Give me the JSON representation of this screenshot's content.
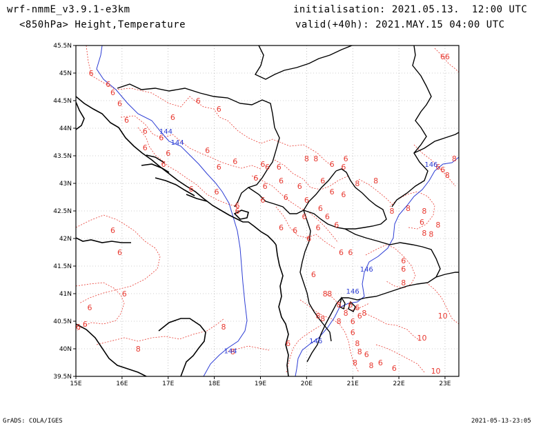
{
  "header": {
    "model": "wrf-nmmE_v3.9.1-e3km",
    "fields": "<850hPa> Height,Temperature",
    "init": "initialisation: 2021.05.13.  12:00 UTC",
    "valid": "valid(+40h): 2021.MAY.15 04:00 UTC"
  },
  "footer": {
    "left": "GrADS: COLA/IGES",
    "right": "2021-05-13-23:05"
  },
  "colors": {
    "temperature_contour": "#e8382f",
    "height_contour": "#2a3bd4",
    "coastline": "#000000",
    "border": "#000000",
    "grid": "#9a9a9a"
  },
  "map": {
    "lon_range": [
      15,
      23.3
    ],
    "lat_range": [
      39.5,
      45.5
    ],
    "lon_ticks": [
      {
        "value": 15,
        "label": "15E"
      },
      {
        "value": 16,
        "label": "16E"
      },
      {
        "value": 17,
        "label": "17E"
      },
      {
        "value": 18,
        "label": "18E"
      },
      {
        "value": 19,
        "label": "19E"
      },
      {
        "value": 20,
        "label": "20E"
      },
      {
        "value": 21,
        "label": "21E"
      },
      {
        "value": 22,
        "label": "22E"
      },
      {
        "value": 23,
        "label": "23E"
      }
    ],
    "lat_ticks": [
      {
        "value": 39.5,
        "label": "39.5N"
      },
      {
        "value": 40,
        "label": "40N"
      },
      {
        "value": 40.5,
        "label": "40.5N"
      },
      {
        "value": 41,
        "label": "41N"
      },
      {
        "value": 41.5,
        "label": "41.5N"
      },
      {
        "value": 42,
        "label": "42N"
      },
      {
        "value": 42.5,
        "label": "42.5N"
      },
      {
        "value": 43,
        "label": "43N"
      },
      {
        "value": 43.5,
        "label": "43.5N"
      },
      {
        "value": 44,
        "label": "44N"
      },
      {
        "value": 44.5,
        "label": "44.5N"
      },
      {
        "value": 45,
        "label": "45N"
      },
      {
        "value": 45.5,
        "label": "45.5N"
      }
    ],
    "grid": true,
    "temperature_labels": [
      {
        "text": "6",
        "lon": 15.33,
        "lat": 45.0
      },
      {
        "text": "6",
        "lon": 15.7,
        "lat": 44.8
      },
      {
        "text": "6",
        "lon": 15.8,
        "lat": 44.65
      },
      {
        "text": "6",
        "lon": 15.95,
        "lat": 44.45
      },
      {
        "text": "6",
        "lon": 17.65,
        "lat": 44.5
      },
      {
        "text": "6",
        "lon": 18.1,
        "lat": 44.35
      },
      {
        "text": "6",
        "lon": 16.1,
        "lat": 44.15
      },
      {
        "text": "6",
        "lon": 16.5,
        "lat": 43.95
      },
      {
        "text": "6",
        "lon": 16.85,
        "lat": 43.83
      },
      {
        "text": "6",
        "lon": 17.1,
        "lat": 44.2
      },
      {
        "text": "6",
        "lon": 16.5,
        "lat": 43.65
      },
      {
        "text": "6",
        "lon": 17.0,
        "lat": 43.55
      },
      {
        "text": "6",
        "lon": 17.85,
        "lat": 43.6
      },
      {
        "text": "6",
        "lon": 18.45,
        "lat": 43.4
      },
      {
        "text": "6",
        "lon": 18.1,
        "lat": 43.3
      },
      {
        "text": "6",
        "lon": 16.9,
        "lat": 43.35
      },
      {
        "text": "6",
        "lon": 17.5,
        "lat": 42.9
      },
      {
        "text": "6",
        "lon": 18.05,
        "lat": 42.85
      },
      {
        "text": "6",
        "lon": 18.5,
        "lat": 42.6
      },
      {
        "text": "6",
        "lon": 19.05,
        "lat": 43.35
      },
      {
        "text": "6",
        "lon": 19.15,
        "lat": 43.3
      },
      {
        "text": "6",
        "lon": 18.9,
        "lat": 43.1
      },
      {
        "text": "6",
        "lon": 19.1,
        "lat": 42.95
      },
      {
        "text": "6",
        "lon": 19.45,
        "lat": 43.05
      },
      {
        "text": "6",
        "lon": 19.05,
        "lat": 42.7
      },
      {
        "text": "6",
        "lon": 19.55,
        "lat": 42.75
      },
      {
        "text": "6",
        "lon": 19.85,
        "lat": 42.95
      },
      {
        "text": "6",
        "lon": 20.0,
        "lat": 42.7
      },
      {
        "text": "8",
        "lon": 20.0,
        "lat": 43.45
      },
      {
        "text": "8",
        "lon": 20.2,
        "lat": 43.45
      },
      {
        "text": "6",
        "lon": 20.55,
        "lat": 43.35
      },
      {
        "text": "6",
        "lon": 20.85,
        "lat": 43.45
      },
      {
        "text": "6",
        "lon": 20.8,
        "lat": 43.3
      },
      {
        "text": "6",
        "lon": 20.35,
        "lat": 43.05
      },
      {
        "text": "6",
        "lon": 20.55,
        "lat": 42.85
      },
      {
        "text": "6",
        "lon": 20.8,
        "lat": 42.8
      },
      {
        "text": "6",
        "lon": 20.3,
        "lat": 42.55
      },
      {
        "text": "6",
        "lon": 19.95,
        "lat": 42.4
      },
      {
        "text": "6",
        "lon": 20.45,
        "lat": 42.4
      },
      {
        "text": "6",
        "lon": 20.65,
        "lat": 42.25
      },
      {
        "text": "6",
        "lon": 19.45,
        "lat": 42.2
      },
      {
        "text": "6",
        "lon": 19.75,
        "lat": 42.15
      },
      {
        "text": "6",
        "lon": 20.25,
        "lat": 42.2
      },
      {
        "text": "6",
        "lon": 20.05,
        "lat": 42.0
      },
      {
        "text": "8",
        "lon": 21.1,
        "lat": 43.0
      },
      {
        "text": "8",
        "lon": 21.5,
        "lat": 43.05
      },
      {
        "text": "8",
        "lon": 21.85,
        "lat": 42.5
      },
      {
        "text": "8",
        "lon": 22.2,
        "lat": 42.55
      },
      {
        "text": "8",
        "lon": 22.55,
        "lat": 42.5
      },
      {
        "text": "8",
        "lon": 22.85,
        "lat": 42.25
      },
      {
        "text": "8",
        "lon": 22.55,
        "lat": 42.1
      },
      {
        "text": "8",
        "lon": 22.7,
        "lat": 42.08
      },
      {
        "text": "6",
        "lon": 22.85,
        "lat": 43.3
      },
      {
        "text": "6",
        "lon": 22.95,
        "lat": 43.25
      },
      {
        "text": "8",
        "lon": 23.2,
        "lat": 43.45
      },
      {
        "text": "8",
        "lon": 23.05,
        "lat": 43.15
      },
      {
        "text": "6",
        "lon": 22.1,
        "lat": 41.6
      },
      {
        "text": "6",
        "lon": 22.1,
        "lat": 41.45
      },
      {
        "text": "8",
        "lon": 22.1,
        "lat": 41.2
      },
      {
        "text": "6",
        "lon": 20.95,
        "lat": 41.75
      },
      {
        "text": "6",
        "lon": 20.75,
        "lat": 41.75
      },
      {
        "text": "6",
        "lon": 20.15,
        "lat": 41.35
      },
      {
        "text": "8",
        "lon": 20.4,
        "lat": 41.0
      },
      {
        "text": "8",
        "lon": 20.7,
        "lat": 40.8
      },
      {
        "text": "8",
        "lon": 20.25,
        "lat": 40.6
      },
      {
        "text": "8",
        "lon": 20.35,
        "lat": 40.55
      },
      {
        "text": "8",
        "lon": 20.7,
        "lat": 40.5
      },
      {
        "text": "6",
        "lon": 20.95,
        "lat": 40.8
      },
      {
        "text": "8",
        "lon": 20.85,
        "lat": 40.65
      },
      {
        "text": "6",
        "lon": 21.1,
        "lat": 40.75
      },
      {
        "text": "8",
        "lon": 21.25,
        "lat": 40.65
      },
      {
        "text": "6",
        "lon": 21.15,
        "lat": 40.6
      },
      {
        "text": "6",
        "lon": 21.0,
        "lat": 40.5
      },
      {
        "text": "6",
        "lon": 21.0,
        "lat": 40.3
      },
      {
        "text": "6",
        "lon": 19.6,
        "lat": 40.1
      },
      {
        "text": "8",
        "lon": 21.1,
        "lat": 40.1
      },
      {
        "text": "8",
        "lon": 21.15,
        "lat": 39.95
      },
      {
        "text": "6",
        "lon": 21.3,
        "lat": 39.9
      },
      {
        "text": "8",
        "lon": 21.05,
        "lat": 39.75
      },
      {
        "text": "8",
        "lon": 21.4,
        "lat": 39.7
      },
      {
        "text": "6",
        "lon": 21.6,
        "lat": 39.75
      },
      {
        "text": "6",
        "lon": 21.9,
        "lat": 39.65
      },
      {
        "text": "10",
        "lon": 22.95,
        "lat": 40.6
      },
      {
        "text": "10",
        "lon": 22.5,
        "lat": 40.2
      },
      {
        "text": "10",
        "lon": 22.8,
        "lat": 39.6
      },
      {
        "text": "6",
        "lon": 18.5,
        "lat": 42.5
      },
      {
        "text": "8",
        "lon": 18.2,
        "lat": 40.4
      },
      {
        "text": "8",
        "lon": 18.4,
        "lat": 39.95
      },
      {
        "text": "8",
        "lon": 16.35,
        "lat": 40.0
      },
      {
        "text": "6",
        "lon": 15.8,
        "lat": 42.15
      },
      {
        "text": "6",
        "lon": 15.95,
        "lat": 41.75
      },
      {
        "text": "6",
        "lon": 16.05,
        "lat": 41.0
      },
      {
        "text": "6",
        "lon": 15.3,
        "lat": 40.75
      },
      {
        "text": "6",
        "lon": 15.2,
        "lat": 40.45
      },
      {
        "text": "6",
        "lon": 15.05,
        "lat": 40.4
      },
      {
        "text": "6",
        "lon": 19.4,
        "lat": 43.3
      },
      {
        "text": "6",
        "lon": 22.5,
        "lat": 42.3
      },
      {
        "text": "66",
        "lon": 23.0,
        "lat": 45.3
      },
      {
        "text": "8",
        "lon": 20.5,
        "lat": 41.0
      }
    ],
    "height_labels": [
      {
        "text": "144",
        "lon": 16.95,
        "lat": 43.95
      },
      {
        "text": "144",
        "lon": 17.2,
        "lat": 43.75
      },
      {
        "text": "144",
        "lon": 18.35,
        "lat": 39.97
      },
      {
        "text": "146",
        "lon": 21.3,
        "lat": 41.45
      },
      {
        "text": "146",
        "lon": 21.0,
        "lat": 41.05
      },
      {
        "text": "146",
        "lon": 20.2,
        "lat": 40.15
      },
      {
        "text": "146",
        "lon": 22.7,
        "lat": 43.35
      }
    ]
  }
}
